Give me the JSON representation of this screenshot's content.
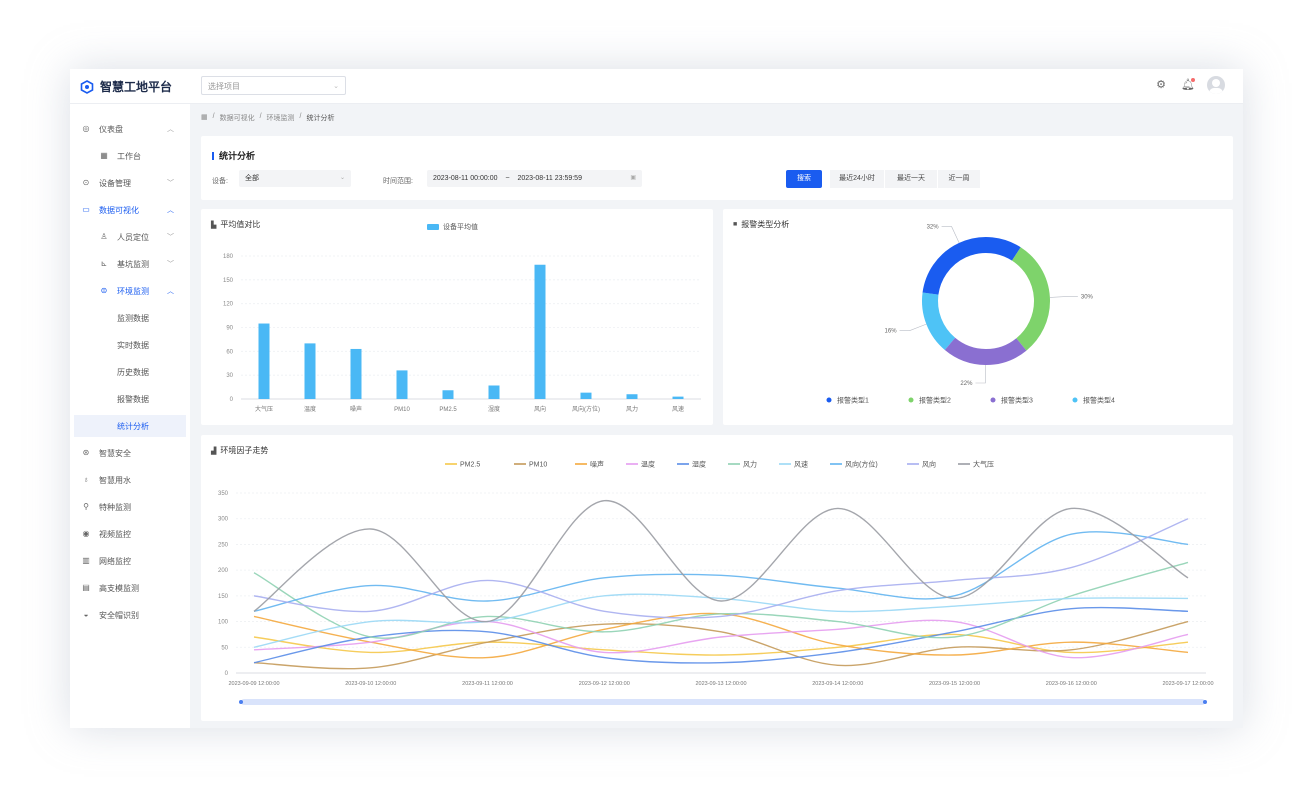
{
  "app": {
    "title": "智慧工地平台",
    "project_placeholder": "选择项目"
  },
  "sidebar": {
    "items": [
      {
        "label": "仪表盘",
        "icon": "dashboard-icon"
      },
      {
        "label": "工作台"
      },
      {
        "label": "设备管理",
        "icon": "device-icon"
      },
      {
        "label": "数据可视化",
        "icon": "chart-icon"
      },
      {
        "label": "人员定位",
        "icon": "person-icon"
      },
      {
        "label": "基坑监测",
        "icon": "pit-icon"
      },
      {
        "label": "环境监测",
        "icon": "env-icon"
      },
      {
        "label": "监测数据"
      },
      {
        "label": "实时数据"
      },
      {
        "label": "历史数据"
      },
      {
        "label": "报警数据"
      },
      {
        "label": "统计分析"
      },
      {
        "label": "智慧安全",
        "icon": "safety-icon"
      },
      {
        "label": "智慧用水",
        "icon": "water-icon"
      },
      {
        "label": "特种监测",
        "icon": "special-icon"
      },
      {
        "label": "视频监控",
        "icon": "video-icon"
      },
      {
        "label": "网络监控",
        "icon": "network-icon"
      },
      {
        "label": "高支模监测",
        "icon": "formwork-icon"
      },
      {
        "label": "安全帽识别",
        "icon": "helmet-icon"
      }
    ]
  },
  "breadcrumb": [
    "数据可视化",
    "环境监测",
    "统计分析"
  ],
  "filter": {
    "title": "统计分析",
    "device_label": "设备:",
    "device_value": "全部",
    "time_label": "时间范围:",
    "time_start": "2023-08-11 00:00:00",
    "time_sep": "~",
    "time_end": "2023-08-11 23:59:59",
    "search_label": "搜索",
    "quick": [
      "最近24小时",
      "最近一天",
      "近一周"
    ]
  },
  "bar_card": {
    "title": "平均值对比",
    "legend": "设备平均值"
  },
  "donut_card": {
    "title": "报警类型分析"
  },
  "line_card": {
    "title": "环境因子走势"
  },
  "chart_data": [
    {
      "type": "bar",
      "title": "平均值对比",
      "categories": [
        "大气压",
        "温度",
        "噪声",
        "PM10",
        "PM2.5",
        "湿度",
        "风向",
        "风向(方位)",
        "风力",
        "风速"
      ],
      "series": [
        {
          "name": "设备平均值",
          "values": [
            95,
            70,
            63,
            36,
            11,
            17,
            169,
            8,
            6,
            3
          ]
        }
      ],
      "ylim": [
        0,
        180
      ],
      "yticks": [
        0,
        30,
        60,
        90,
        120,
        150,
        180
      ],
      "color": "#4ab8f5"
    },
    {
      "type": "pie",
      "title": "报警类型分析",
      "slices": [
        {
          "name": "报警类型1",
          "value": 32,
          "label": "32%",
          "color": "#1a5cf0"
        },
        {
          "name": "报警类型2",
          "value": 30,
          "label": "30%",
          "color": "#7ed36b"
        },
        {
          "name": "报警类型3",
          "value": 22,
          "label": "22%",
          "color": "#8a6fd1"
        },
        {
          "name": "报警类型4",
          "value": 16,
          "label": "16%",
          "color": "#4ec3f6"
        }
      ]
    },
    {
      "type": "line",
      "title": "环境因子走势",
      "x": [
        "2023-09-09 12:00:00",
        "2023-09-10 12:00:00",
        "2023-09-11 12:00:00",
        "2023-09-12 12:00:00",
        "2023-09-13 12:00:00",
        "2023-09-14 12:00:00",
        "2023-09-15 12:00:00",
        "2023-09-16 12:00:00",
        "2023-09-17 12:00:00"
      ],
      "ylim": [
        0,
        350
      ],
      "yticks": [
        0,
        50,
        100,
        150,
        200,
        250,
        300,
        350
      ],
      "series": [
        {
          "name": "PM2.5",
          "color": "#f5c84a",
          "values": [
            70,
            40,
            60,
            45,
            35,
            50,
            75,
            40,
            60
          ]
        },
        {
          "name": "PM10",
          "color": "#c49a5a",
          "values": [
            20,
            10,
            60,
            95,
            80,
            15,
            50,
            45,
            100
          ]
        },
        {
          "name": "噪声",
          "color": "#f4a93e",
          "values": [
            110,
            60,
            30,
            85,
            115,
            55,
            35,
            60,
            40
          ]
        },
        {
          "name": "温度",
          "color": "#e59cf0",
          "values": [
            45,
            60,
            100,
            40,
            70,
            85,
            100,
            30,
            75
          ]
        },
        {
          "name": "湿度",
          "color": "#5a8de8",
          "values": [
            20,
            70,
            80,
            30,
            20,
            40,
            80,
            125,
            120
          ]
        },
        {
          "name": "风力",
          "color": "#8fd1b3",
          "values": [
            195,
            70,
            110,
            80,
            115,
            100,
            70,
            150,
            215
          ]
        },
        {
          "name": "风速",
          "color": "#9ad8f5",
          "values": [
            50,
            100,
            100,
            150,
            145,
            120,
            130,
            145,
            145
          ]
        },
        {
          "name": "风向(方位)",
          "color": "#62b4f0",
          "values": [
            120,
            170,
            140,
            185,
            190,
            165,
            150,
            270,
            250
          ]
        },
        {
          "name": "风向",
          "color": "#a7aef0",
          "values": [
            150,
            120,
            180,
            120,
            110,
            160,
            180,
            205,
            300
          ]
        },
        {
          "name": "大气压",
          "color": "#9a9ca3",
          "values": [
            120,
            280,
            100,
            335,
            140,
            320,
            145,
            320,
            185
          ]
        }
      ]
    }
  ]
}
